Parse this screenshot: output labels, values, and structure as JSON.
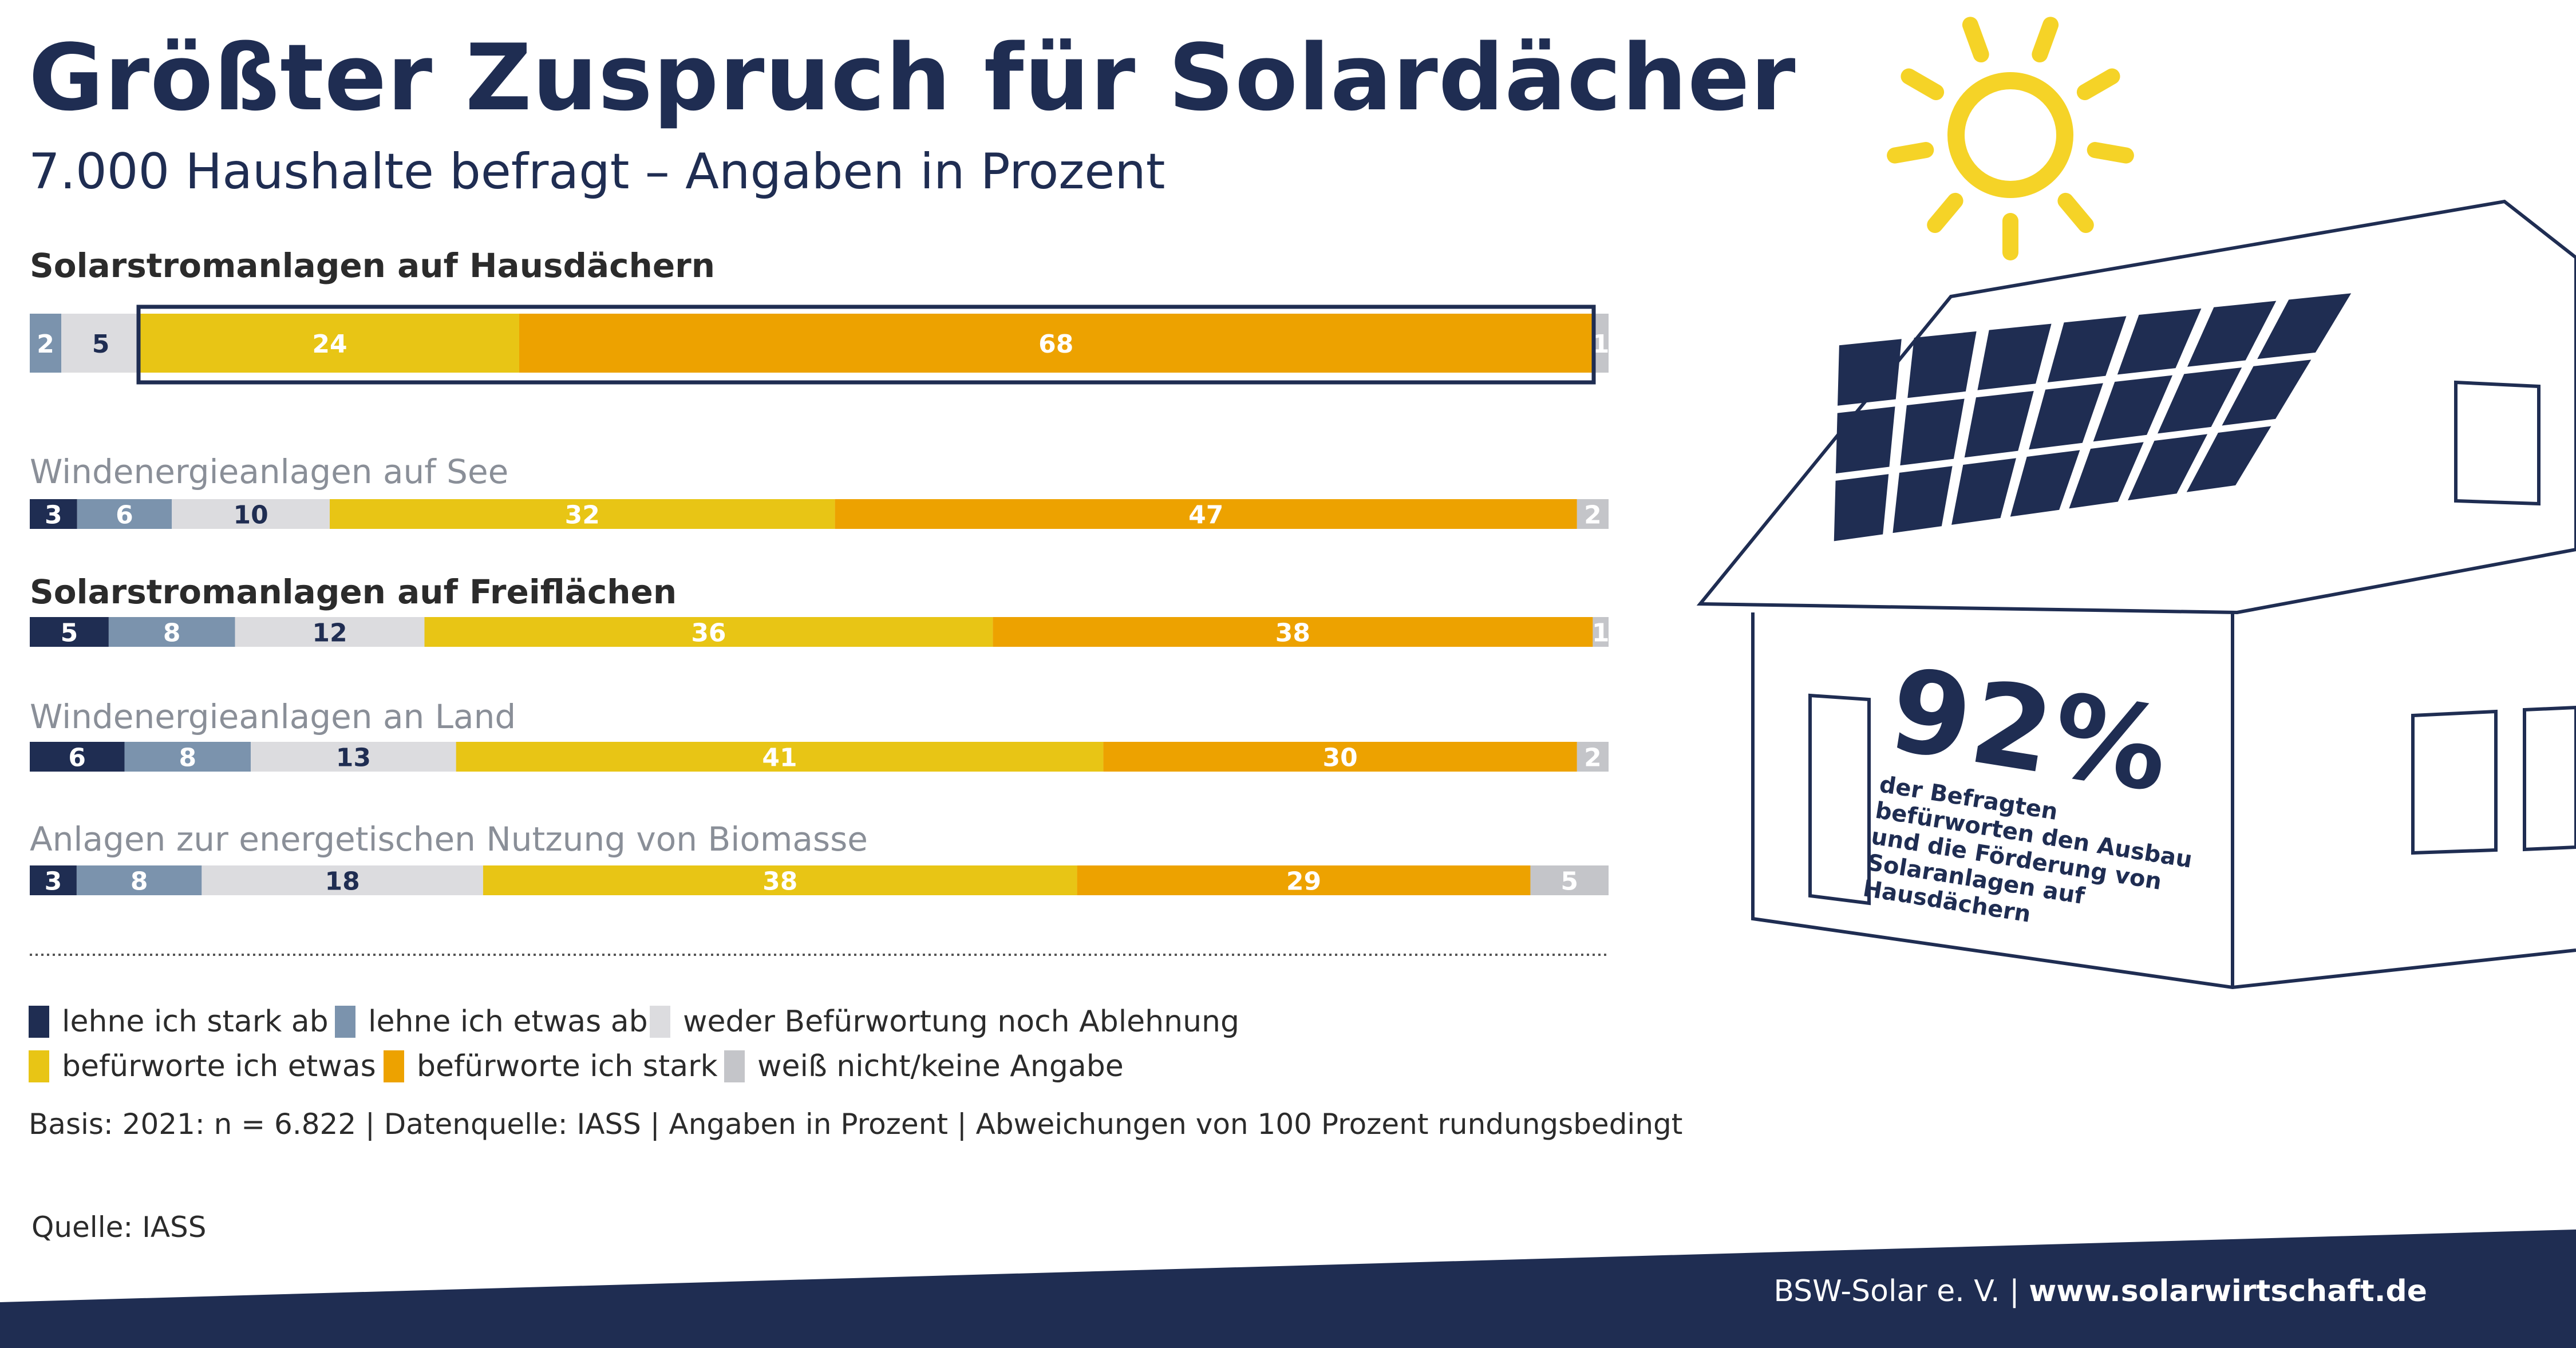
{
  "title": "Größter Zuspruch für Solardächer",
  "subtitle": "7.000 Haushalte befragt – Angaben in Prozent",
  "colors": {
    "lehne_stark": "#1f2d52",
    "lehne_etwas": "#7b93ad",
    "weder": "#dcdcdf",
    "befuerworte_etwas": "#e8c515",
    "befuerworte_stark": "#eda200",
    "weiss_nicht": "#c4c5c9",
    "navy": "#1f2d52",
    "sun": "#f5d327"
  },
  "chart_data": {
    "type": "bar",
    "orientation": "horizontal",
    "stacked": true,
    "categories": [
      "Solarstromanlagen auf Hausdächern",
      "Windenergieanlagen auf See",
      "Solarstromanlagen auf Freiflächen",
      "Windenergieanlagen an Land",
      "Anlagen zur energetischen Nutzung von Biomasse"
    ],
    "series": [
      {
        "name": "lehne ich stark ab",
        "values": [
          0,
          3,
          5,
          6,
          3
        ]
      },
      {
        "name": "lehne ich etwas ab",
        "values": [
          2,
          6,
          8,
          8,
          8
        ]
      },
      {
        "name": "weder Befürwortung noch Ablehnung",
        "values": [
          5,
          10,
          12,
          13,
          18
        ]
      },
      {
        "name": "befürworte ich etwas",
        "values": [
          24,
          32,
          36,
          41,
          38
        ]
      },
      {
        "name": "befürworte ich stark",
        "values": [
          68,
          47,
          38,
          30,
          29
        ]
      },
      {
        "name": "weiß nicht/keine Angabe",
        "values": [
          1,
          2,
          1,
          2,
          5
        ]
      }
    ],
    "legend_position": "bottom",
    "highlighted_category": "Solarstromanlagen auf Hausdächern"
  },
  "stat": {
    "value": "92%",
    "text": "der Befragten befürworten den Ausbau und die Förderung von Solaranlagen auf Hausdächern"
  },
  "basis": "Basis: 2021: n = 6.822 | Datenquelle: IASS | Angaben in Prozent | Abweichungen von 100 Prozent rundungsbedingt",
  "quelle": "Quelle: IASS",
  "footer": {
    "org": "BSW-Solar e. V. | ",
    "site": "www.solarwirtschaft.de"
  }
}
